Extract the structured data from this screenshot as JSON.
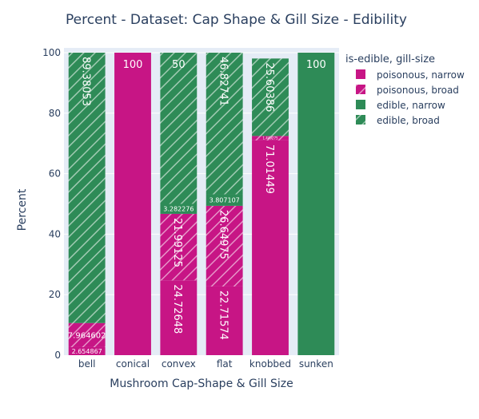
{
  "chart_data": {
    "type": "bar",
    "barmode": "stack",
    "title": "Percent - Dataset: Cap Shape & Gill Size - Edibility",
    "xlabel": "Mushroom Cap-Shape & Gill Size",
    "ylabel": "Percent",
    "ylim": [
      0,
      100
    ],
    "yticks": [
      "0",
      "20",
      "40",
      "60",
      "80",
      "100"
    ],
    "grid": true,
    "legend": {
      "title": "is-edible, gill-size",
      "placement": "top-right"
    },
    "categories": [
      "bell",
      "conical",
      "convex",
      "flat",
      "knobbed",
      "sunken"
    ],
    "series": [
      {
        "name": "poisonous, narrow",
        "color": "#c71585",
        "pattern": "solid",
        "values": [
          2.654867,
          100,
          24.72648,
          22.71574,
          71.01449,
          0
        ],
        "labels": [
          "2.654867",
          "100",
          "24.72648",
          "22.71574",
          "71.01449",
          ""
        ]
      },
      {
        "name": "poisonous, broad",
        "color": "#c71585",
        "pattern": "hatch",
        "values": [
          7.964602,
          0,
          21.99125,
          26.64975,
          1.449275,
          0
        ],
        "labels": [
          "7.964602",
          "",
          "21.99125",
          "26.64975",
          "1.449275",
          ""
        ]
      },
      {
        "name": "edible, narrow",
        "color": "#2e8b57",
        "pattern": "solid",
        "values": [
          0,
          0,
          3.282276,
          3.807107,
          0,
          100
        ],
        "labels": [
          "",
          "",
          "3.282276",
          "3.807107",
          "",
          "100"
        ]
      },
      {
        "name": "edible, broad",
        "color": "#2e8b57",
        "pattern": "hatch",
        "values": [
          89.38053,
          0,
          50,
          46.82741,
          25.60386,
          0
        ],
        "labels": [
          "89.38053",
          "",
          "50",
          "46.82741",
          "25.60386",
          ""
        ]
      }
    ]
  }
}
